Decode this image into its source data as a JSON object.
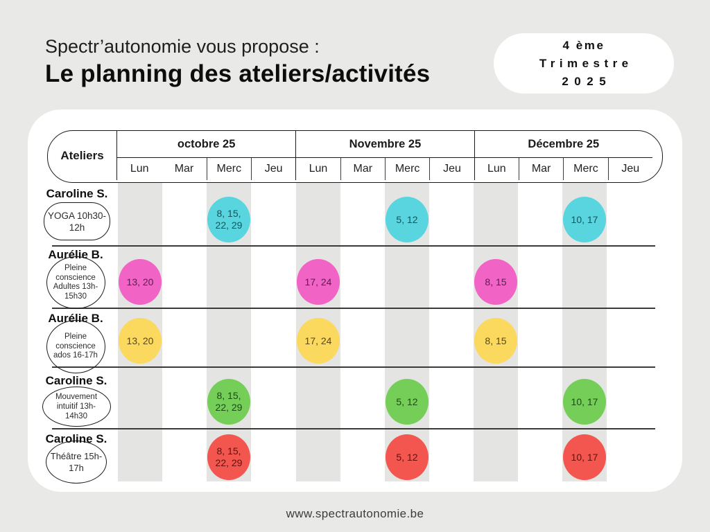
{
  "header": {
    "subtitle": "Spectr’autonomie vous propose :",
    "title": "Le planning des ateliers/activités",
    "badge": {
      "line1": "4 ème",
      "line2": "Trimestre",
      "line3": "2025"
    }
  },
  "footer": {
    "url": "www.spectrautonomie.be"
  },
  "planning": {
    "corner_label": "Ateliers",
    "months": [
      {
        "label": "octobre 25",
        "days": [
          "Lun",
          "Mar",
          "Merc",
          "Jeu"
        ]
      },
      {
        "label": "Novembre 25",
        "days": [
          "Lun",
          "Mar",
          "Merc",
          "Jeu"
        ]
      },
      {
        "label": "Décembre 25",
        "days": [
          "Lun",
          "Mar",
          "Merc",
          "Jeu"
        ]
      }
    ],
    "rows": [
      {
        "instructor": "Caroline S.",
        "activity": "YOGA 10h30-12h",
        "day": "Merc",
        "color": "#58d5de",
        "text_color": "#17535c",
        "dates": [
          "8, 15, 22, 29",
          "5, 12",
          "10, 17"
        ]
      },
      {
        "instructor": "Aurélie B.",
        "activity": "Pleine conscience Adultes 13h-15h30",
        "day": "Lun",
        "color": "#f163c5",
        "text_color": "#571f4e",
        "dates": [
          "13, 20",
          "17, 24",
          "8, 15"
        ]
      },
      {
        "instructor": "Aurélie B.",
        "activity": "Pleine conscience ados 16-17h",
        "day": "Lun",
        "color": "#fbd95e",
        "text_color": "#5b470f",
        "dates": [
          "13, 20",
          "17, 24",
          "8, 15"
        ]
      },
      {
        "instructor": "Caroline S.",
        "activity": "Mouvement intuitif 13h-14h30",
        "day": "Merc",
        "color": "#74ce58",
        "text_color": "#1c4b15",
        "dates": [
          "8, 15, 22, 29",
          "5, 12",
          "10, 17"
        ]
      },
      {
        "instructor": "Caroline S.",
        "activity": "Théâtre 15h-17h",
        "day": "Merc",
        "color": "#f2564f",
        "text_color": "#63100b",
        "dates": [
          "8, 15, 22, 29",
          "5, 12",
          "10, 17"
        ]
      }
    ]
  }
}
